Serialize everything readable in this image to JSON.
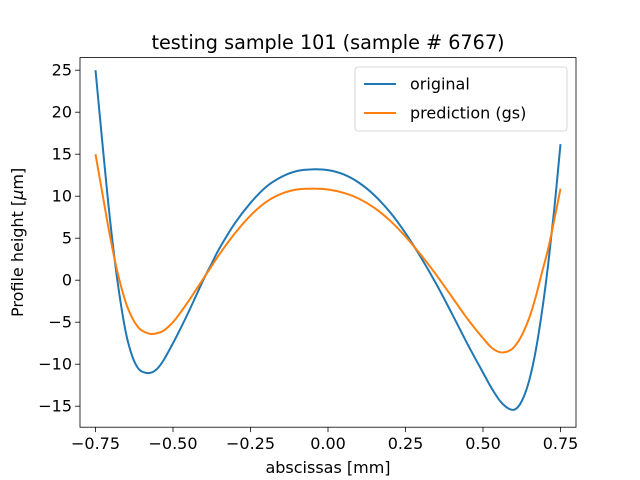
{
  "chart_data": {
    "type": "line",
    "title": "testing sample 101 (sample # 6767)",
    "xlabel": "abscissas [mm]",
    "ylabel_prefix": "Profile height [",
    "ylabel_mu": "μ",
    "ylabel_suffix": "m]",
    "xlim": [
      -0.8,
      0.8
    ],
    "ylim": [
      -17.5,
      26.5
    ],
    "xticks": [
      -0.75,
      -0.5,
      -0.25,
      0.0,
      0.25,
      0.5,
      0.75
    ],
    "xtick_labels": [
      "−0.75",
      "−0.50",
      "−0.25",
      "0.00",
      "0.25",
      "0.50",
      "0.75"
    ],
    "yticks": [
      -15,
      -10,
      -5,
      0,
      5,
      10,
      15,
      20,
      25
    ],
    "ytick_labels": [
      "−15",
      "−10",
      "−5",
      "0",
      "5",
      "10",
      "15",
      "20",
      "25"
    ],
    "grid": false,
    "legend_position": "top-right",
    "series": [
      {
        "name": "original",
        "color": "#1f77b4",
        "x": [
          -0.75,
          -0.73,
          -0.71,
          -0.69,
          -0.67,
          -0.65,
          -0.63,
          -0.61,
          -0.59,
          -0.57,
          -0.55,
          -0.53,
          -0.5,
          -0.475,
          -0.45,
          -0.425,
          -0.4,
          -0.375,
          -0.35,
          -0.3,
          -0.25,
          -0.2,
          -0.15,
          -0.1,
          -0.05,
          0.0,
          0.05,
          0.1,
          0.15,
          0.2,
          0.25,
          0.3,
          0.35,
          0.4,
          0.45,
          0.5,
          0.53,
          0.56,
          0.59,
          0.61,
          0.63,
          0.65,
          0.67,
          0.69,
          0.71,
          0.73,
          0.75
        ],
        "y": [
          25.0,
          17.2,
          9.6,
          3.0,
          -2.4,
          -6.6,
          -9.2,
          -10.6,
          -11.0,
          -11.0,
          -10.5,
          -9.5,
          -7.5,
          -5.7,
          -3.8,
          -1.8,
          0.2,
          2.0,
          3.8,
          6.8,
          9.2,
          11.1,
          12.3,
          13.0,
          13.2,
          13.1,
          12.6,
          11.6,
          10.1,
          8.1,
          5.6,
          2.7,
          -0.5,
          -4.0,
          -7.6,
          -11.0,
          -13.0,
          -14.6,
          -15.4,
          -15.2,
          -14.0,
          -11.8,
          -8.4,
          -3.8,
          1.8,
          8.5,
          16.2
        ]
      },
      {
        "name": "prediction (gs)",
        "color": "#ff7f0e",
        "x": [
          -0.75,
          -0.73,
          -0.71,
          -0.69,
          -0.67,
          -0.65,
          -0.63,
          -0.61,
          -0.59,
          -0.57,
          -0.55,
          -0.53,
          -0.5,
          -0.475,
          -0.45,
          -0.425,
          -0.4,
          -0.375,
          -0.35,
          -0.3,
          -0.25,
          -0.2,
          -0.15,
          -0.1,
          -0.05,
          0.0,
          0.05,
          0.1,
          0.15,
          0.2,
          0.25,
          0.3,
          0.35,
          0.4,
          0.45,
          0.5,
          0.53,
          0.56,
          0.59,
          0.61,
          0.63,
          0.65,
          0.67,
          0.69,
          0.71,
          0.73,
          0.75
        ],
        "y": [
          15.0,
          10.8,
          6.6,
          2.8,
          -0.4,
          -2.9,
          -4.6,
          -5.7,
          -6.2,
          -6.4,
          -6.3,
          -6.0,
          -5.0,
          -3.8,
          -2.5,
          -1.1,
          0.3,
          1.7,
          3.1,
          5.6,
          7.7,
          9.3,
          10.3,
          10.8,
          10.9,
          10.8,
          10.4,
          9.7,
          8.6,
          7.1,
          5.2,
          3.0,
          0.6,
          -2.0,
          -4.6,
          -6.9,
          -8.1,
          -8.6,
          -8.3,
          -7.5,
          -6.2,
          -4.4,
          -2.0,
          0.9,
          3.7,
          7.2,
          10.9
        ]
      }
    ]
  }
}
